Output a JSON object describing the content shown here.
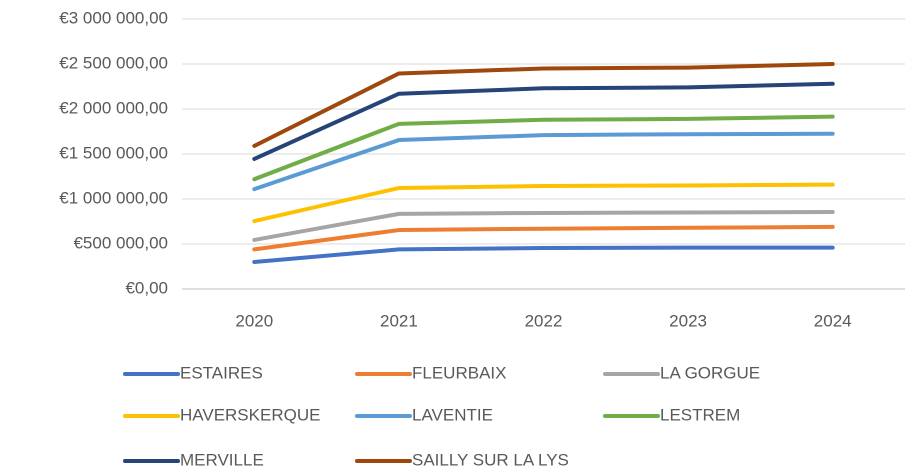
{
  "chart_data": {
    "type": "line",
    "categories": [
      "2020",
      "2021",
      "2022",
      "2023",
      "2024"
    ],
    "series": [
      {
        "name": "ESTAIRES",
        "color": "#4472c4",
        "values": [
          300000,
          440000,
          455000,
          460000,
          460000
        ]
      },
      {
        "name": "FLEURBAIX",
        "color": "#ed7d31",
        "values": [
          440000,
          655000,
          670000,
          680000,
          690000
        ]
      },
      {
        "name": "LA GORGUE",
        "color": "#a5a5a5",
        "values": [
          545000,
          835000,
          845000,
          850000,
          855000
        ]
      },
      {
        "name": "HAVERSKERQUE",
        "color": "#ffc000",
        "values": [
          755000,
          1122000,
          1145000,
          1150000,
          1160000
        ]
      },
      {
        "name": "LAVENTIE",
        "color": "#5b9bd5",
        "values": [
          1110000,
          1655000,
          1710000,
          1720000,
          1725000
        ]
      },
      {
        "name": "LESTREM",
        "color": "#70ad47",
        "values": [
          1220000,
          1835000,
          1880000,
          1890000,
          1915000
        ]
      },
      {
        "name": "MERVILLE",
        "color": "#264478",
        "values": [
          1445000,
          2170000,
          2230000,
          2240000,
          2280000
        ]
      },
      {
        "name": "SAILLY SUR LA LYS",
        "color": "#9e480e",
        "values": [
          1590000,
          2395000,
          2450000,
          2460000,
          2500000
        ]
      }
    ],
    "ylim": [
      0,
      3000000
    ],
    "yticks": [
      {
        "value": 0,
        "label": "€0,00"
      },
      {
        "value": 500000,
        "label": "€500 000,00"
      },
      {
        "value": 1000000,
        "label": "€1 000 000,00"
      },
      {
        "value": 1500000,
        "label": "€1 500 000,00"
      },
      {
        "value": 2000000,
        "label": "€2 000 000,00"
      },
      {
        "value": 2500000,
        "label": "€2 500 000,00"
      },
      {
        "value": 3000000,
        "label": "€3 000 000,00"
      }
    ],
    "grid": true,
    "legend": "bottom"
  }
}
